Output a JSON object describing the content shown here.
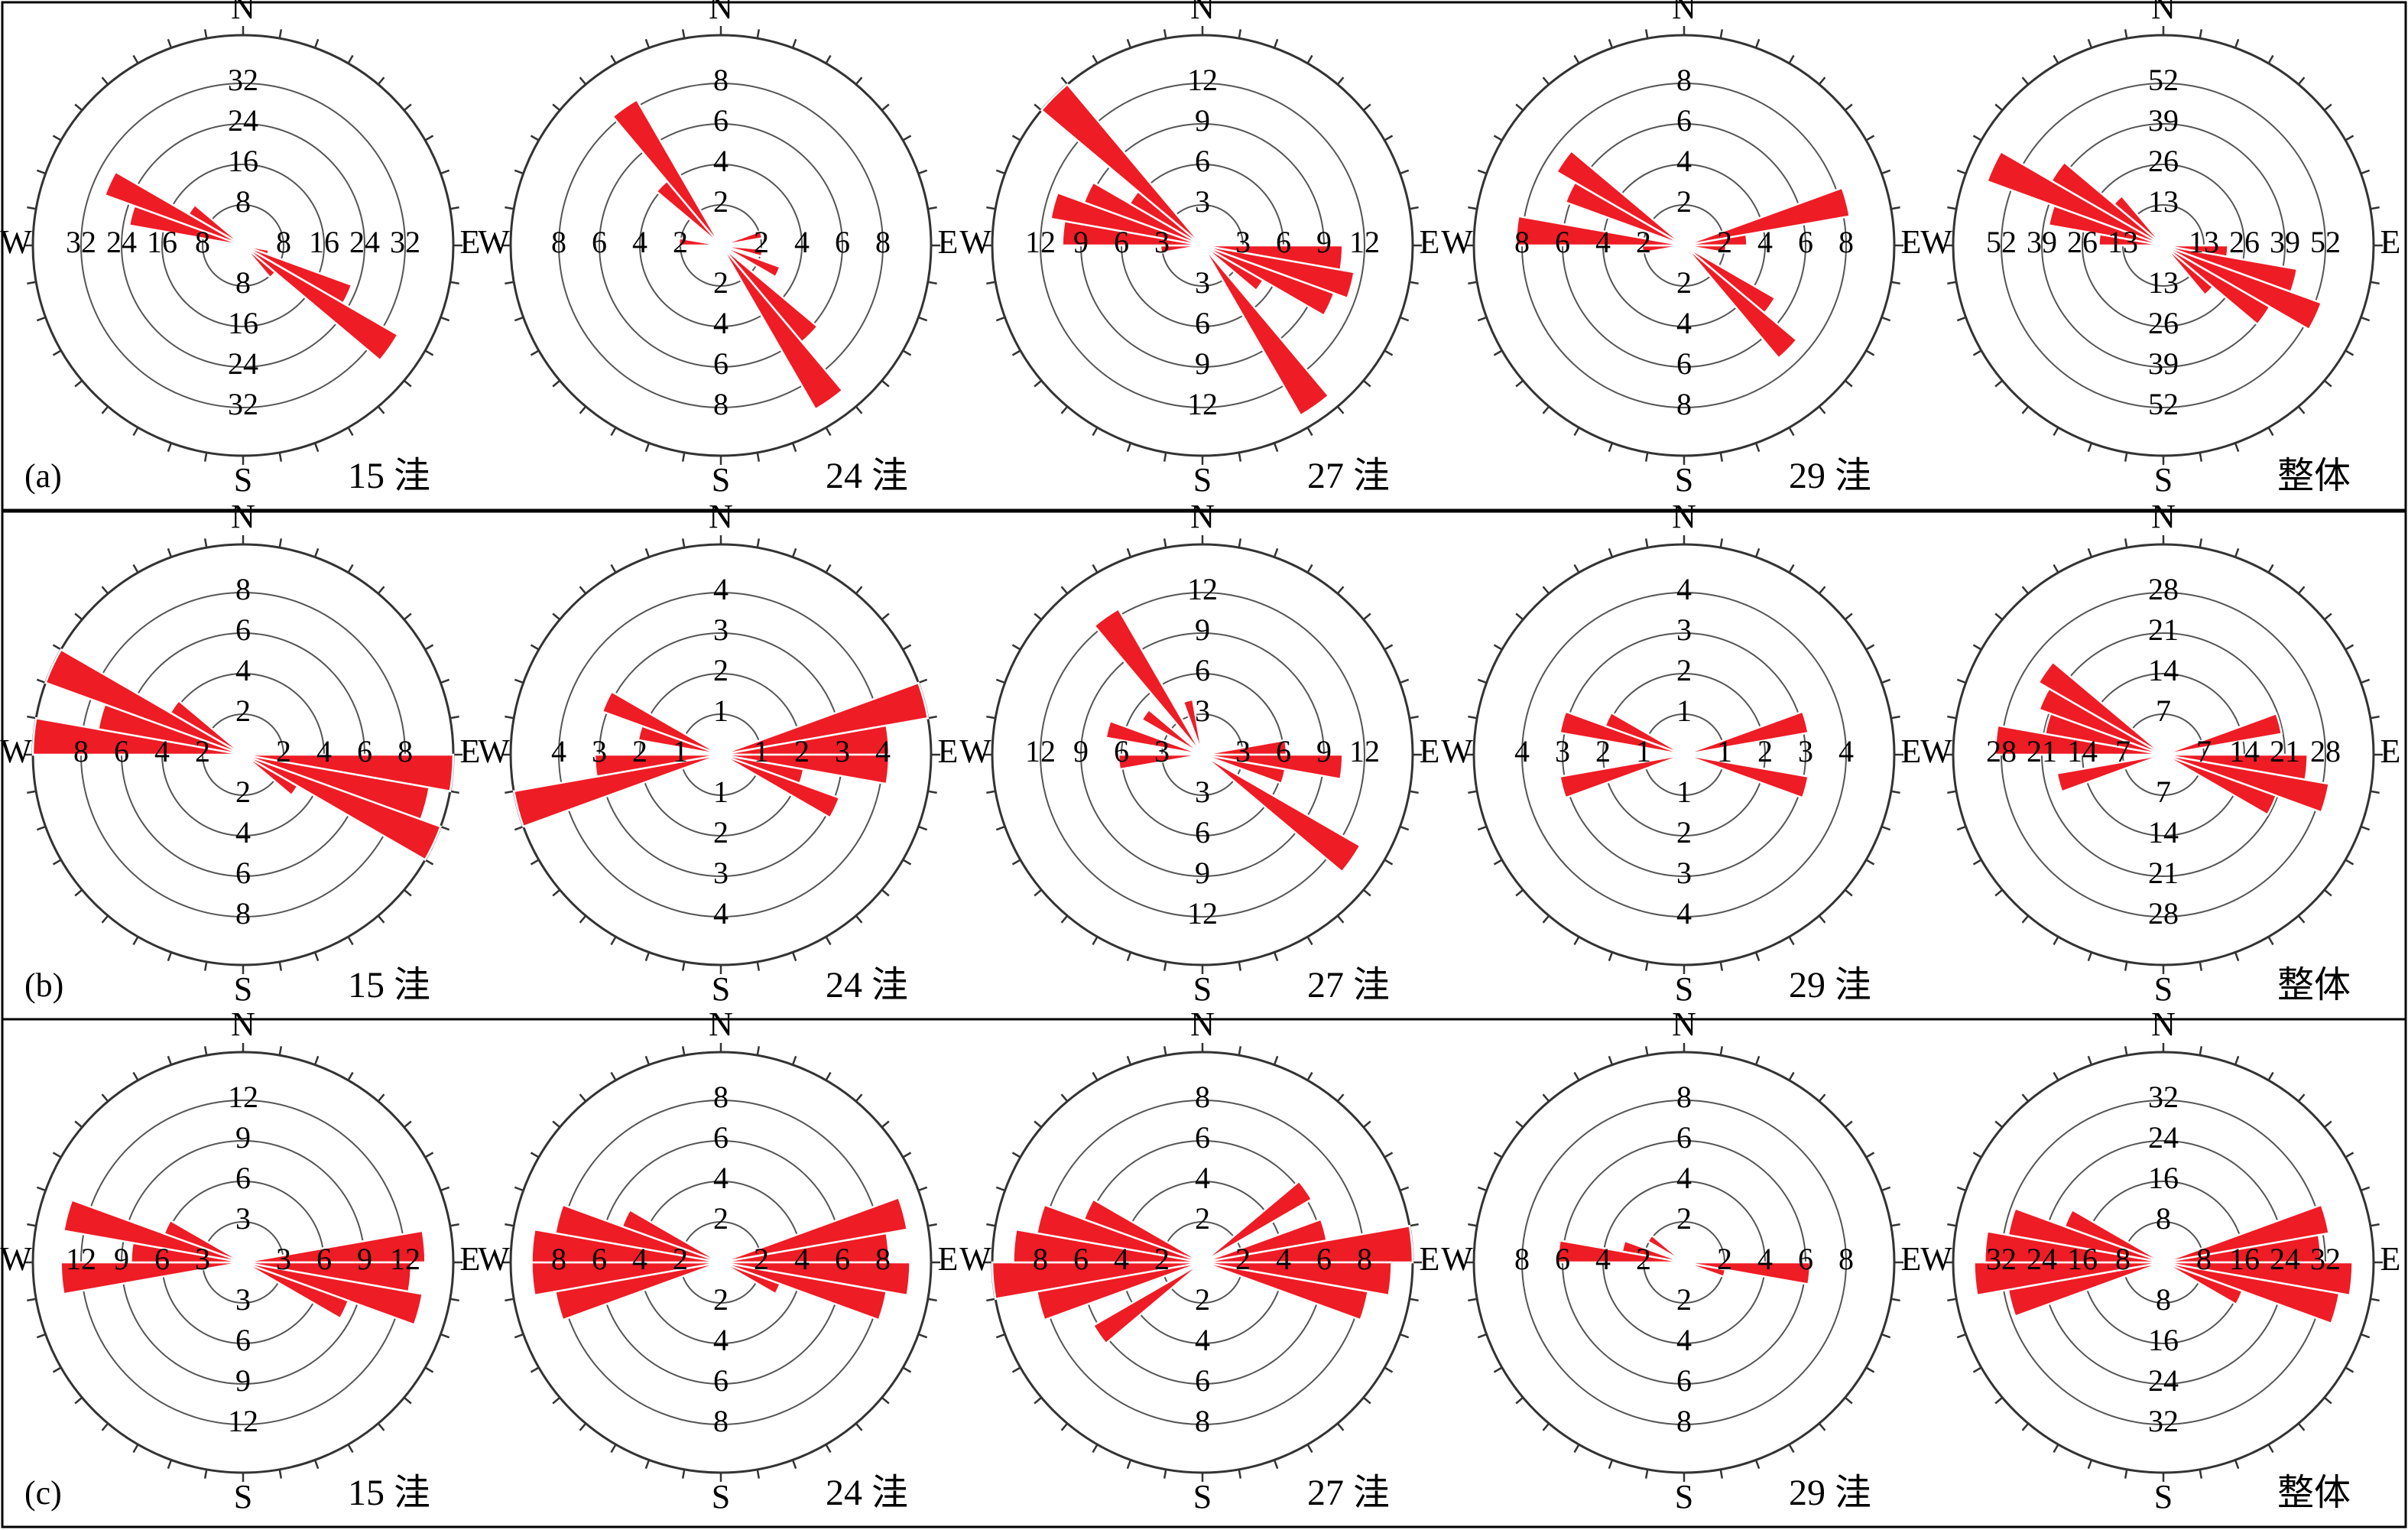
{
  "figure": {
    "compass": {
      "north": "N",
      "south": "S",
      "west": "W",
      "east": "E"
    }
  },
  "chart_data": [
    {
      "row_label": "(a)",
      "charts": [
        {
          "type": "rose",
          "title": "15 洼",
          "ring_labels": [
            "8",
            "16",
            "24",
            "32"
          ],
          "max": 40,
          "petals": [
            {
              "angle": 105,
              "value": 5
            },
            {
              "angle": 115,
              "value": 22
            },
            {
              "angle": 125,
              "value": 34
            },
            {
              "angle": 135,
              "value": 8
            },
            {
              "angle": 285,
              "value": 22
            },
            {
              "angle": 295,
              "value": 28
            },
            {
              "angle": 305,
              "value": 12
            }
          ]
        },
        {
          "type": "rose",
          "title": "24 洼",
          "ring_labels": [
            "2",
            "4",
            "6",
            "8"
          ],
          "max": 10,
          "petals": [
            {
              "angle": 75,
              "value": 2
            },
            {
              "angle": 100,
              "value": 2
            },
            {
              "angle": 115,
              "value": 3
            },
            {
              "angle": 135,
              "value": 6
            },
            {
              "angle": 145,
              "value": 9
            },
            {
              "angle": 275,
              "value": 2
            },
            {
              "angle": 315,
              "value": 4
            },
            {
              "angle": 325,
              "value": 8
            }
          ]
        },
        {
          "type": "rose",
          "title": "27 洼",
          "ring_labels": [
            "3",
            "6",
            "9",
            "12"
          ],
          "max": 15,
          "petals": [
            {
              "angle": 95,
              "value": 10
            },
            {
              "angle": 105,
              "value": 11
            },
            {
              "angle": 115,
              "value": 10
            },
            {
              "angle": 125,
              "value": 5
            },
            {
              "angle": 145,
              "value": 14
            },
            {
              "angle": 265,
              "value": 3
            },
            {
              "angle": 275,
              "value": 10
            },
            {
              "angle": 285,
              "value": 11
            },
            {
              "angle": 295,
              "value": 9
            },
            {
              "angle": 305,
              "value": 6
            },
            {
              "angle": 315,
              "value": 15
            }
          ]
        },
        {
          "type": "rose",
          "title": "29 洼",
          "ring_labels": [
            "2",
            "4",
            "6",
            "8"
          ],
          "max": 10,
          "petals": [
            {
              "angle": 75,
              "value": 8
            },
            {
              "angle": 85,
              "value": 3
            },
            {
              "angle": 95,
              "value": 2
            },
            {
              "angle": 125,
              "value": 5
            },
            {
              "angle": 135,
              "value": 7
            },
            {
              "angle": 265,
              "value": 2
            },
            {
              "angle": 275,
              "value": 8
            },
            {
              "angle": 295,
              "value": 6
            },
            {
              "angle": 305,
              "value": 7
            }
          ]
        },
        {
          "type": "rose",
          "title": "整体",
          "ring_labels": [
            "13",
            "26",
            "39",
            "52"
          ],
          "max": 65,
          "petals": [
            {
              "angle": 95,
              "value": 20
            },
            {
              "angle": 105,
              "value": 42
            },
            {
              "angle": 115,
              "value": 52
            },
            {
              "angle": 125,
              "value": 38
            },
            {
              "angle": 135,
              "value": 20
            },
            {
              "angle": 275,
              "value": 20
            },
            {
              "angle": 285,
              "value": 36
            },
            {
              "angle": 295,
              "value": 58
            },
            {
              "angle": 305,
              "value": 40
            },
            {
              "angle": 315,
              "value": 20
            }
          ]
        }
      ]
    },
    {
      "row_label": "(b)",
      "charts": [
        {
          "type": "rose",
          "title": "15 洼",
          "ring_labels": [
            "2",
            "4",
            "6",
            "8"
          ],
          "max": 10,
          "petals": [
            {
              "angle": 95,
              "value": 10
            },
            {
              "angle": 105,
              "value": 9
            },
            {
              "angle": 115,
              "value": 10
            },
            {
              "angle": 125,
              "value": 3
            },
            {
              "angle": 275,
              "value": 10
            },
            {
              "angle": 285,
              "value": 7
            },
            {
              "angle": 295,
              "value": 10
            },
            {
              "angle": 305,
              "value": 4
            }
          ]
        },
        {
          "type": "rose",
          "title": "24 洼",
          "ring_labels": [
            "1",
            "2",
            "3",
            "4"
          ],
          "max": 5,
          "petals": [
            {
              "angle": 75,
              "value": 5
            },
            {
              "angle": 85,
              "value": 4
            },
            {
              "angle": 95,
              "value": 4
            },
            {
              "angle": 105,
              "value": 2
            },
            {
              "angle": 115,
              "value": 3
            },
            {
              "angle": 255,
              "value": 5
            },
            {
              "angle": 265,
              "value": 3
            },
            {
              "angle": 285,
              "value": 2
            },
            {
              "angle": 295,
              "value": 3
            }
          ]
        },
        {
          "type": "rose",
          "title": "27 洼",
          "ring_labels": [
            "3",
            "6",
            "9",
            "12"
          ],
          "max": 15,
          "petals": [
            {
              "angle": 85,
              "value": 6
            },
            {
              "angle": 95,
              "value": 10
            },
            {
              "angle": 105,
              "value": 6
            },
            {
              "angle": 125,
              "value": 13
            },
            {
              "angle": 265,
              "value": 6
            },
            {
              "angle": 285,
              "value": 7
            },
            {
              "angle": 305,
              "value": 5
            },
            {
              "angle": 325,
              "value": 12
            },
            {
              "angle": 345,
              "value": 4
            }
          ]
        },
        {
          "type": "rose",
          "title": "29 洼",
          "ring_labels": [
            "1",
            "2",
            "3",
            "4"
          ],
          "max": 5,
          "petals": [
            {
              "angle": 75,
              "value": 3
            },
            {
              "angle": 105,
              "value": 3
            },
            {
              "angle": 255,
              "value": 3
            },
            {
              "angle": 285,
              "value": 3
            },
            {
              "angle": 295,
              "value": 2
            }
          ]
        },
        {
          "type": "rose",
          "title": "整体",
          "ring_labels": [
            "7",
            "14",
            "21",
            "28"
          ],
          "max": 35,
          "petals": [
            {
              "angle": 75,
              "value": 20
            },
            {
              "angle": 95,
              "value": 24
            },
            {
              "angle": 105,
              "value": 28
            },
            {
              "angle": 115,
              "value": 20
            },
            {
              "angle": 255,
              "value": 18
            },
            {
              "angle": 275,
              "value": 28
            },
            {
              "angle": 285,
              "value": 20
            },
            {
              "angle": 295,
              "value": 22
            },
            {
              "angle": 305,
              "value": 24
            }
          ]
        }
      ]
    },
    {
      "row_label": "(c)",
      "charts": [
        {
          "type": "rose",
          "title": "15 洼",
          "ring_labels": [
            "3",
            "6",
            "9",
            "12"
          ],
          "max": 15,
          "petals": [
            {
              "angle": 85,
              "value": 13
            },
            {
              "angle": 95,
              "value": 12
            },
            {
              "angle": 105,
              "value": 13
            },
            {
              "angle": 115,
              "value": 8
            },
            {
              "angle": 265,
              "value": 13
            },
            {
              "angle": 275,
              "value": 8
            },
            {
              "angle": 285,
              "value": 13
            },
            {
              "angle": 295,
              "value": 6
            }
          ]
        },
        {
          "type": "rose",
          "title": "24 洼",
          "ring_labels": [
            "2",
            "4",
            "6",
            "8"
          ],
          "max": 10,
          "petals": [
            {
              "angle": 75,
              "value": 9
            },
            {
              "angle": 85,
              "value": 8
            },
            {
              "angle": 95,
              "value": 9
            },
            {
              "angle": 105,
              "value": 8
            },
            {
              "angle": 115,
              "value": 3
            },
            {
              "angle": 255,
              "value": 8
            },
            {
              "angle": 265,
              "value": 9
            },
            {
              "angle": 275,
              "value": 9
            },
            {
              "angle": 285,
              "value": 8
            },
            {
              "angle": 295,
              "value": 5
            }
          ]
        },
        {
          "type": "rose",
          "title": "27 洼",
          "ring_labels": [
            "2",
            "4",
            "6",
            "8"
          ],
          "max": 10,
          "petals": [
            {
              "angle": 55,
              "value": 6
            },
            {
              "angle": 75,
              "value": 6
            },
            {
              "angle": 85,
              "value": 10
            },
            {
              "angle": 95,
              "value": 9
            },
            {
              "angle": 105,
              "value": 8
            },
            {
              "angle": 235,
              "value": 6
            },
            {
              "angle": 255,
              "value": 8
            },
            {
              "angle": 265,
              "value": 10
            },
            {
              "angle": 275,
              "value": 9
            },
            {
              "angle": 285,
              "value": 8
            },
            {
              "angle": 295,
              "value": 6
            }
          ]
        },
        {
          "type": "rose",
          "title": "29 洼",
          "ring_labels": [
            "2",
            "4",
            "6",
            "8"
          ],
          "max": 10,
          "petals": [
            {
              "angle": 95,
              "value": 6
            },
            {
              "angle": 105,
              "value": 2
            },
            {
              "angle": 275,
              "value": 6
            },
            {
              "angle": 285,
              "value": 3
            },
            {
              "angle": 305,
              "value": 2
            }
          ]
        },
        {
          "type": "rose",
          "title": "整体",
          "ring_labels": [
            "8",
            "16",
            "24",
            "32"
          ],
          "max": 40,
          "petals": [
            {
              "angle": 75,
              "value": 32
            },
            {
              "angle": 85,
              "value": 30
            },
            {
              "angle": 95,
              "value": 36
            },
            {
              "angle": 105,
              "value": 34
            },
            {
              "angle": 115,
              "value": 16
            },
            {
              "angle": 255,
              "value": 30
            },
            {
              "angle": 265,
              "value": 36
            },
            {
              "angle": 275,
              "value": 34
            },
            {
              "angle": 285,
              "value": 30
            },
            {
              "angle": 295,
              "value": 20
            }
          ]
        }
      ]
    }
  ]
}
